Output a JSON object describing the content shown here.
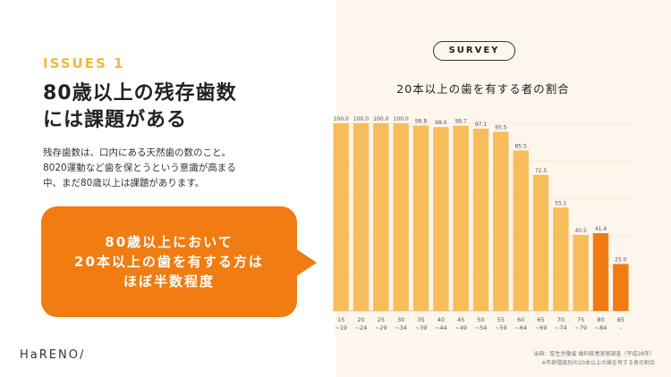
{
  "left": {
    "issue_label": "ISSUES 1",
    "heading_line1": "80歳以上の残存歯数",
    "heading_line2": "には課題がある",
    "body_line1": "残存歯数は、口内にある天然歯の数のこと。",
    "body_line2": "8020運動など歯を保とうという意識が高まる",
    "body_line3": "中、まだ80歳以上は課題があります。",
    "callout_line1": "80歳以上において",
    "callout_line2": "20本以上の歯を有する方は",
    "callout_line3": "ほぼ半数程度",
    "logo": "HaRENO/"
  },
  "right": {
    "survey_badge": "SURVEY",
    "source_line1": "出典：厚生労働省 歯科疾患実態調査（平成28年）",
    "source_line2": "※年齢階級別の20本以上の歯を有する者の割合"
  },
  "colors": {
    "accent": "#f07c12",
    "bar": "#f7bd5a",
    "issue": "#f0b93e",
    "panel": "#fdf6ec"
  },
  "chart_data": {
    "type": "bar",
    "title": "20本以上の歯を有する者の割合",
    "categories": [
      "15-19",
      "20-24",
      "25-29",
      "30-34",
      "35-39",
      "40-44",
      "45-49",
      "50-54",
      "55-59",
      "60-64",
      "65-69",
      "70-74",
      "75-79",
      "80-84",
      "85-"
    ],
    "tick_line1": [
      "15",
      "20",
      "25",
      "30",
      "35",
      "40",
      "45",
      "50",
      "55",
      "60",
      "65",
      "70",
      "75",
      "80",
      "85"
    ],
    "tick_line2": [
      "~19",
      "~24",
      "~29",
      "~34",
      "~39",
      "~44",
      "~49",
      "~54",
      "~59",
      "~64",
      "~69",
      "~74",
      "~79",
      "~84",
      "-"
    ],
    "values": [
      100.0,
      100.0,
      100.0,
      100.0,
      98.8,
      98.0,
      98.7,
      97.1,
      95.5,
      85.5,
      72.5,
      55.1,
      40.5,
      41.4,
      25.0
    ],
    "labels": [
      "100.0",
      "100.0",
      "100.0",
      "100.0",
      "98.8",
      "98.0",
      "98.7",
      "97.1",
      "95.5",
      "85.5",
      "72.5",
      "55.1",
      "40.5",
      "41.4",
      "25.0"
    ],
    "highlight_from_index": 13,
    "ylim": [
      0,
      100
    ],
    "grid": true
  }
}
